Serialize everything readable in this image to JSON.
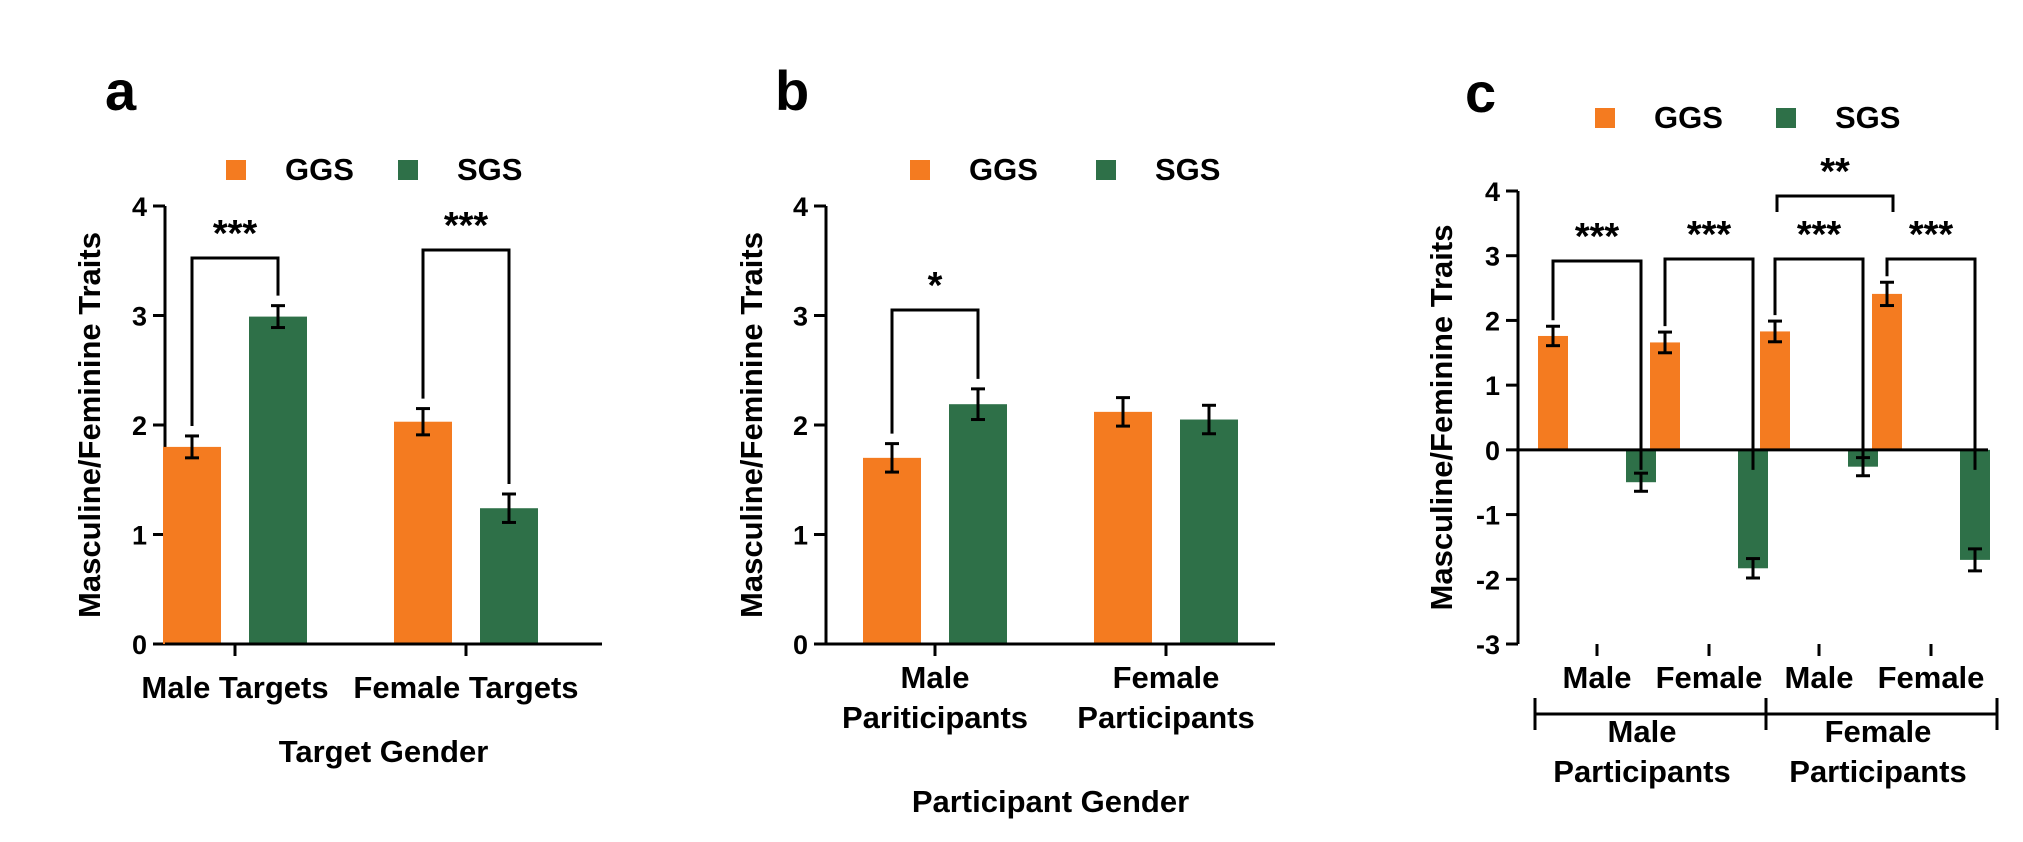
{
  "colors": {
    "GGS": "#F47B20",
    "SGS": "#2E7048",
    "axis": "#000000"
  },
  "legend": [
    {
      "label": "GGS",
      "color": "#F47B20"
    },
    {
      "label": "SGS",
      "color": "#2E7048"
    }
  ],
  "chart_data": [
    {
      "panel": "a",
      "type": "bar",
      "ylabel": "Masculine/Feminine Traits",
      "xlabel": "Target Gender",
      "ylim": [
        0,
        4
      ],
      "yticks": [
        0,
        1,
        2,
        3,
        4
      ],
      "categories": [
        "Male Targets",
        "Female Targets"
      ],
      "series": [
        {
          "name": "GGS",
          "values": [
            1.8,
            2.03
          ],
          "errors": [
            0.1,
            0.12
          ]
        },
        {
          "name": "SGS",
          "values": [
            2.99,
            1.24
          ],
          "errors": [
            0.1,
            0.13
          ]
        }
      ],
      "significance": [
        {
          "category": 0,
          "label": "***"
        },
        {
          "category": 1,
          "label": "***"
        }
      ],
      "legend_position": "top"
    },
    {
      "panel": "b",
      "type": "bar",
      "ylabel": "Masculine/Feminine Traits",
      "xlabel": "Participant Gender",
      "ylim": [
        0,
        4
      ],
      "yticks": [
        0,
        1,
        2,
        3,
        4
      ],
      "categories": [
        "Male Pariticipants",
        "Female Participants"
      ],
      "series": [
        {
          "name": "GGS",
          "values": [
            1.7,
            2.12
          ],
          "errors": [
            0.13,
            0.13
          ]
        },
        {
          "name": "SGS",
          "values": [
            2.19,
            2.05
          ],
          "errors": [
            0.14,
            0.13
          ]
        }
      ],
      "significance": [
        {
          "category": 0,
          "label": "*"
        }
      ],
      "legend_position": "top"
    },
    {
      "panel": "c",
      "type": "bar",
      "ylabel": "Masculine/Feminine Traits",
      "ylim": [
        -3,
        4
      ],
      "yticks": [
        -3,
        -2,
        -1,
        0,
        1,
        2,
        3,
        4
      ],
      "categories": [
        "Male",
        "Female",
        "Male",
        "Female"
      ],
      "groups": [
        "Male Participants",
        "Female Participants"
      ],
      "series": [
        {
          "name": "GGS",
          "values": [
            1.76,
            1.66,
            1.83,
            2.41
          ],
          "errors": [
            0.15,
            0.16,
            0.16,
            0.18
          ]
        },
        {
          "name": "SGS",
          "values": [
            -0.5,
            -1.83,
            -0.26,
            -1.7
          ],
          "errors": [
            0.14,
            0.15,
            0.14,
            0.17
          ]
        }
      ],
      "significance": [
        {
          "category": 0,
          "label": "***"
        },
        {
          "category": 1,
          "label": "***"
        },
        {
          "category": 2,
          "label": "***"
        },
        {
          "category": 3,
          "label": "***"
        },
        {
          "between": [
            2,
            3
          ],
          "label": "**"
        }
      ],
      "legend_position": "top"
    }
  ]
}
